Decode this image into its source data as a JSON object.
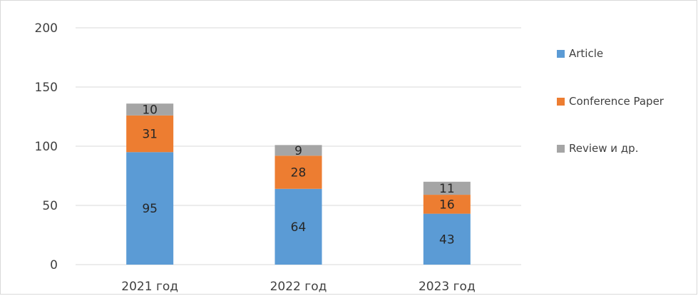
{
  "chart_data": {
    "type": "bar",
    "stacked": true,
    "categories": [
      "2021 год",
      "2022 год",
      "2023 год"
    ],
    "series": [
      {
        "name": "Article",
        "values": [
          95,
          64,
          43
        ],
        "color": "#5b9bd5"
      },
      {
        "name": "Conference Paper",
        "values": [
          31,
          28,
          16
        ],
        "color": "#ed7d31"
      },
      {
        "name": "Review и др.",
        "values": [
          10,
          9,
          11
        ],
        "color": "#a5a5a5"
      }
    ],
    "ylim": [
      0,
      200
    ],
    "yticks": [
      0,
      50,
      100,
      150,
      200
    ],
    "grid": true,
    "legend": "right",
    "data_labels": true
  }
}
